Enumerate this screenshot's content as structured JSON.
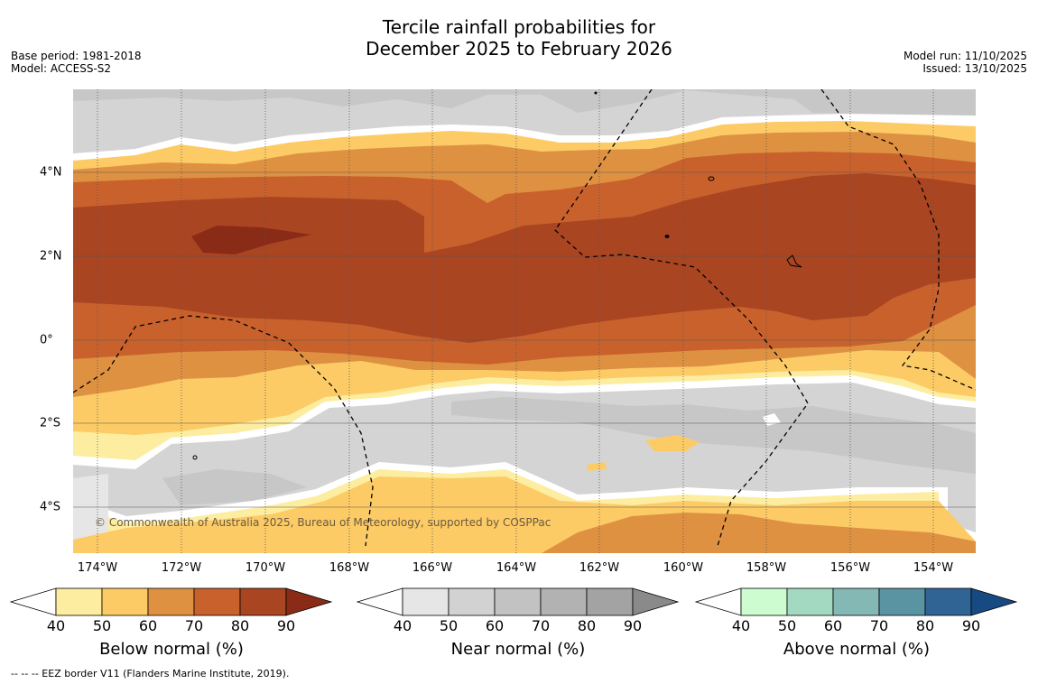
{
  "header": {
    "title_line1": "Tercile rainfall probabilities for",
    "title_line2": "December 2025 to February 2026",
    "base_period": "Base period: 1981-2018",
    "model": "Model: ACCESS-S2",
    "model_run": "Model run: 11/10/2025",
    "issued": "Issued: 13/10/2025"
  },
  "map": {
    "lon_labels": [
      "174°W",
      "172°W",
      "170°W",
      "168°W",
      "166°W",
      "164°W",
      "162°W",
      "160°W",
      "158°W",
      "156°W",
      "154°W"
    ],
    "lat_labels": [
      "4°N",
      "2°N",
      "0°",
      "2°S",
      "4°S"
    ],
    "copyright": "© Commonwealth of Australia 2025, Bureau of Meteorology, supported by COSPPac"
  },
  "legends": [
    {
      "title": "Below normal (%)",
      "ticks": [
        "40",
        "50",
        "60",
        "70",
        "80",
        "90"
      ],
      "colors": [
        "#ffffff",
        "#fdeda0",
        "#fccb66",
        "#df9142",
        "#c9612d",
        "#aa4522",
        "#8a2b18"
      ]
    },
    {
      "title": "Near normal (%)",
      "ticks": [
        "40",
        "50",
        "60",
        "70",
        "80",
        "90"
      ],
      "colors": [
        "#ffffff",
        "#e6e6e6",
        "#d2d2d2",
        "#c2c2c2",
        "#b2b2b2",
        "#a3a3a3",
        "#8a8a8a"
      ]
    },
    {
      "title": "Above normal (%)",
      "ticks": [
        "40",
        "50",
        "60",
        "70",
        "80",
        "90"
      ],
      "colors": [
        "#ffffff",
        "#ccfccf",
        "#a3d9c0",
        "#83b8b4",
        "#5a93a1",
        "#2f6495",
        "#174a82"
      ]
    }
  ],
  "footnote": "--  --  -- EEZ border V11 (Flanders Marine Institute, 2019)."
}
